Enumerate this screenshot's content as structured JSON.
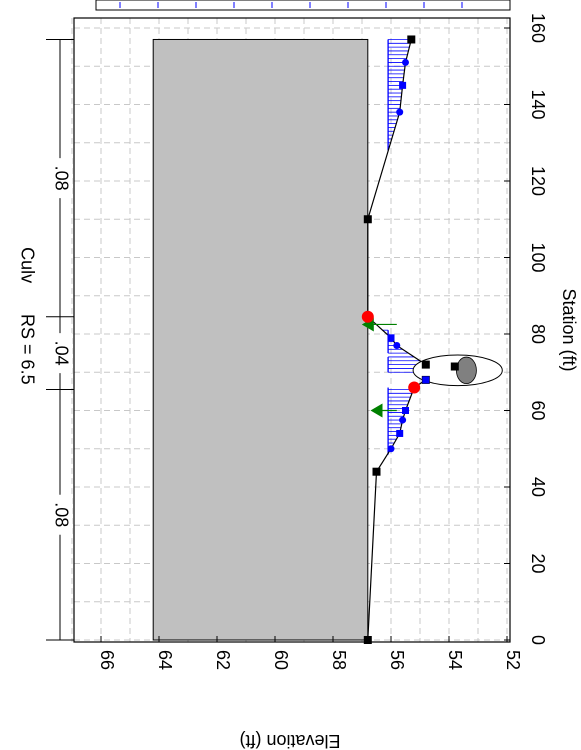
{
  "chart_data": {
    "type": "line",
    "orientation": "rotated 90 degrees clockwise (station axis runs top-to-bottom on the right, elevation axis runs right-to-left on the bottom)",
    "xlabel": "Station (ft)",
    "ylabel": "Elevation (ft)",
    "xlim": [
      0,
      160
    ],
    "ylim": [
      52,
      67
    ],
    "x_ticks": [
      "0",
      "20",
      "40",
      "60",
      "80",
      "100",
      "120",
      "140",
      "160"
    ],
    "y_ticks": [
      "52",
      "54",
      "56",
      "58",
      "60",
      "62",
      "64",
      "66"
    ],
    "grid": "dashed",
    "header": {
      "rs": "RS = 6.5",
      "node_type": "Culv",
      "n_left": ".08",
      "n_channel": ".04",
      "n_right": ".08"
    },
    "manning_breaks": [
      0,
      65.5,
      84.5,
      157
    ],
    "ground": {
      "x": [
        0,
        44,
        50,
        54,
        57.5,
        60,
        66,
        68,
        71,
        71.5,
        72,
        77,
        79,
        84.5,
        110,
        138,
        145,
        151,
        157
      ],
      "y": [
        56.8,
        56.5,
        56.0,
        55.7,
        55.6,
        55.5,
        55.2,
        54.8,
        54.5,
        53.8,
        54.8,
        55.8,
        56.0,
        56.8,
        56.8,
        55.7,
        55.6,
        55.5,
        55.3
      ]
    },
    "road_deck": {
      "x_start": 0,
      "x_end": 157,
      "low_chord": 56.8,
      "high_chord": 64.2
    },
    "water_surface": [
      {
        "x": [
          48.5,
          66
        ],
        "elevation": 56.1
      },
      {
        "x": [
          70,
          74
        ],
        "elevation": 56.1
      },
      {
        "x": [
          75,
          81
        ],
        "elevation": 56.1
      },
      {
        "x": [
          128,
          157
        ],
        "elevation": 56.1
      }
    ],
    "culvert": {
      "center_station": 70.5,
      "center_elevation": 53.7,
      "span": 4,
      "rise": 1.4
    },
    "ineffective_flow": [
      {
        "station": 60,
        "elevation": 56.5,
        "extends_to": 60
      },
      {
        "station": 82.5,
        "elevation": 56.8,
        "extends_to": 84
      }
    ],
    "bank_stations": [
      {
        "x": 66,
        "y": 55.2
      },
      {
        "x": 84.5,
        "y": 56.8
      }
    ]
  }
}
